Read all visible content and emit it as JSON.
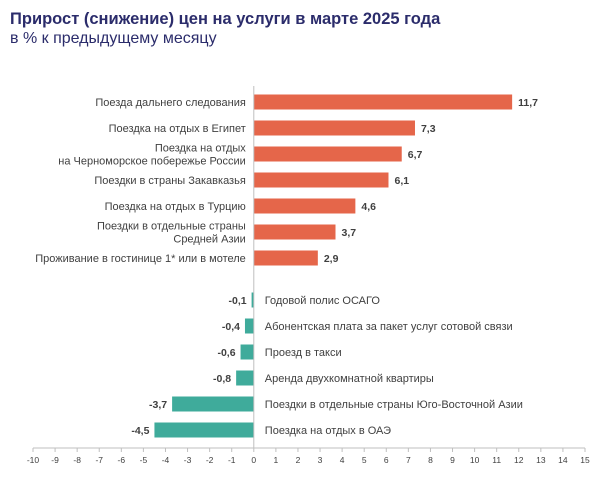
{
  "title": "Прирост (снижение) цен на услуги в марте 2025 года",
  "subtitle": "в % к предыдущему месяцу",
  "colors": {
    "positive": "#e5664a",
    "negative": "#3fab9b",
    "title": "#2b2c6b",
    "text": "#404040",
    "axis": "#bfbfbf"
  },
  "chart_data": {
    "type": "bar",
    "orientation": "horizontal",
    "title": "Прирост (снижение) цен на услуги в марте 2025 года",
    "subtitle": "в % к предыдущему месяцу",
    "xlim": [
      -10,
      15
    ],
    "x_ticks": [
      "-10",
      "-9",
      "-8",
      "-7",
      "-6",
      "-5",
      "-4",
      "-3",
      "-2",
      "-1",
      "0",
      "1",
      "2",
      "3",
      "4",
      "5",
      "6",
      "7",
      "8",
      "9",
      "10",
      "11",
      "12",
      "13",
      "14",
      "15"
    ],
    "grid": false,
    "legend": "none",
    "groups": [
      {
        "sign": "positive",
        "items": [
          {
            "label": [
              "Поезда дальнего следования"
            ],
            "value": 11.7,
            "value_label": "11,7"
          },
          {
            "label": [
              "Поездка на отдых в Египет"
            ],
            "value": 7.3,
            "value_label": "7,3"
          },
          {
            "label": [
              "Поездка на отдых",
              "на Черноморское побережье России"
            ],
            "value": 6.7,
            "value_label": "6,7"
          },
          {
            "label": [
              "Поездки в страны Закавказья"
            ],
            "value": 6.1,
            "value_label": "6,1"
          },
          {
            "label": [
              "Поездка на отдых в Турцию"
            ],
            "value": 4.6,
            "value_label": "4,6"
          },
          {
            "label": [
              "Поездки в отдельные страны",
              "Средней Азии"
            ],
            "value": 3.7,
            "value_label": "3,7"
          },
          {
            "label": [
              "Проживание в гостинице 1* или в мотеле"
            ],
            "value": 2.9,
            "value_label": "2,9"
          }
        ]
      },
      {
        "sign": "negative",
        "items": [
          {
            "label": [
              "Годовой полис ОСАГО"
            ],
            "value": -0.1,
            "value_label": "-0,1"
          },
          {
            "label": [
              "Абонентская плата за пакет услуг сотовой связи"
            ],
            "value": -0.4,
            "value_label": "-0,4"
          },
          {
            "label": [
              "Проезд в такси"
            ],
            "value": -0.6,
            "value_label": "-0,6"
          },
          {
            "label": [
              "Аренда двухкомнатной квартиры"
            ],
            "value": -0.8,
            "value_label": "-0,8"
          },
          {
            "label": [
              "Поездки в отдельные страны Юго-Восточной Азии"
            ],
            "value": -3.7,
            "value_label": "-3,7"
          },
          {
            "label": [
              "Поездка на отдых в ОАЭ"
            ],
            "value": -4.5,
            "value_label": "-4,5"
          }
        ]
      }
    ]
  }
}
